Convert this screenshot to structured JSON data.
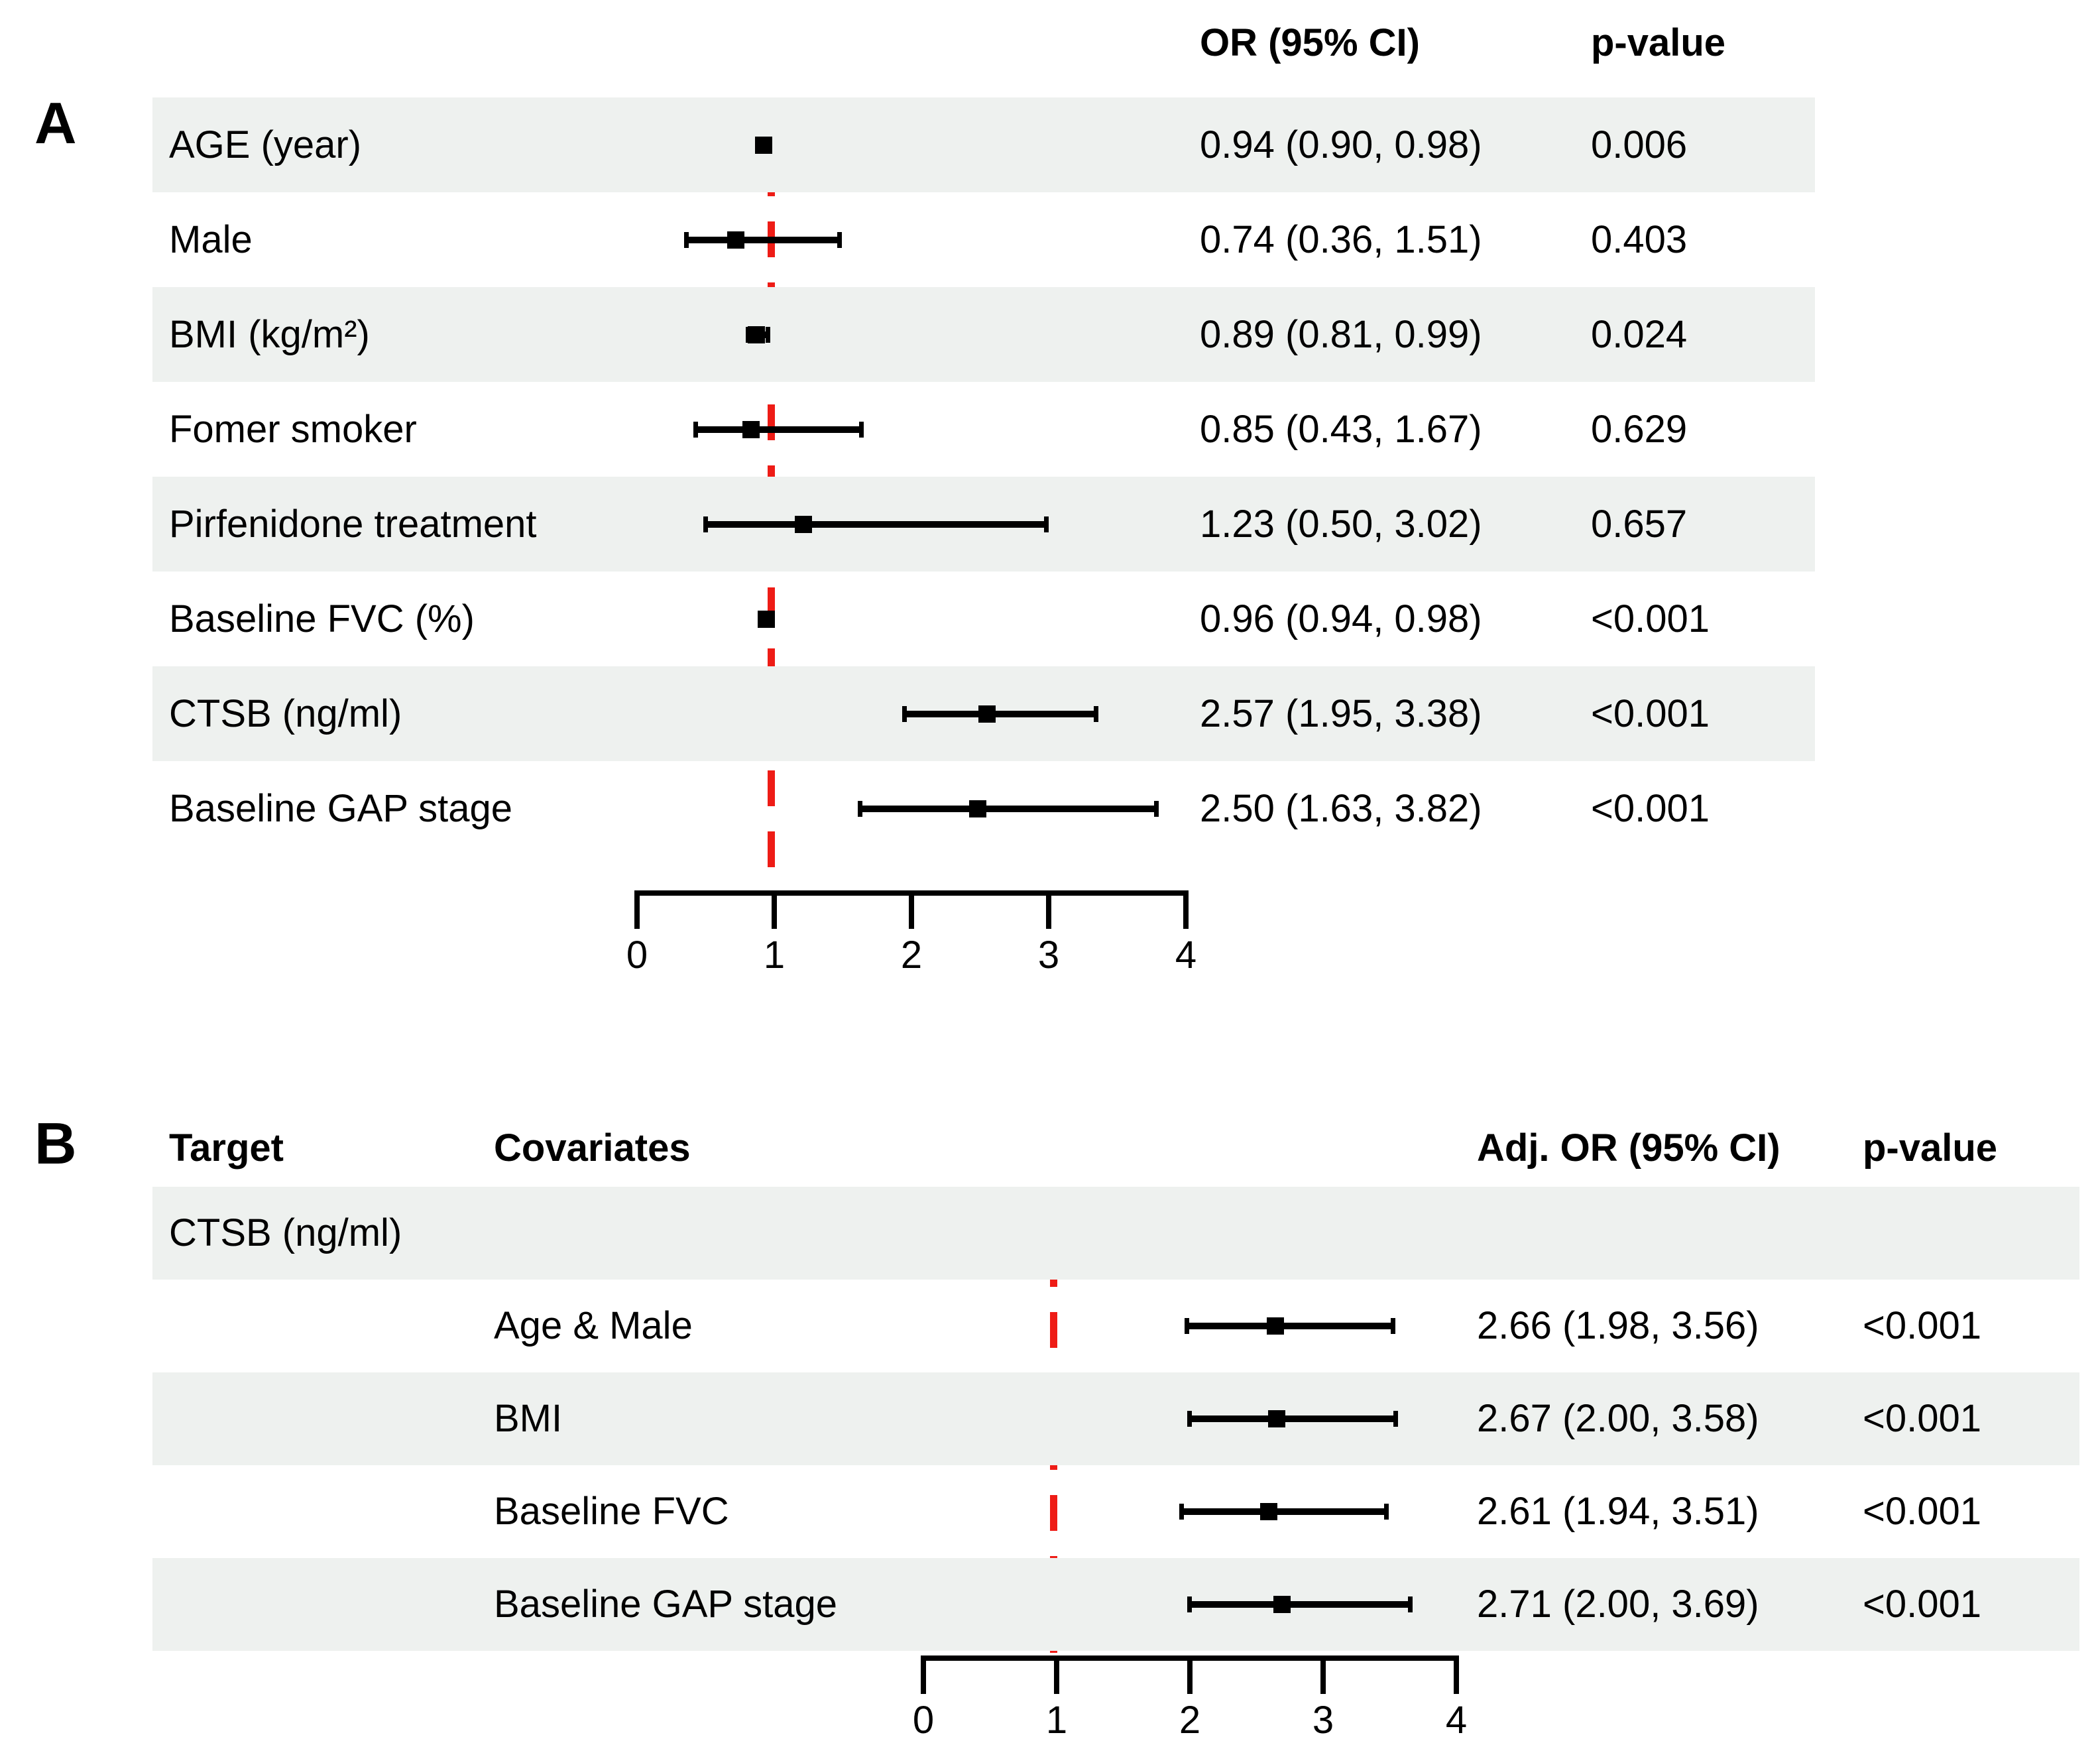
{
  "colors": {
    "band": "#eef1ef",
    "marker": "#000000",
    "reference_line": "#ee1c16"
  },
  "chart_data": [
    {
      "type": "forest",
      "panel": "A",
      "columns": {
        "or_header": "OR (95% CI)",
        "p_header": "p-value"
      },
      "rows": [
        {
          "label": "AGE (year)",
          "role": "variable",
          "or": 0.94,
          "ci": [
            0.9,
            0.98
          ],
          "or_text": "0.94 (0.90, 0.98)",
          "p": "0.006"
        },
        {
          "label": "Male",
          "role": "variable",
          "or": 0.74,
          "ci": [
            0.36,
            1.51
          ],
          "or_text": "0.74 (0.36, 1.51)",
          "p": "0.403"
        },
        {
          "label": "BMI (kg/m²)",
          "role": "variable",
          "or": 0.89,
          "ci": [
            0.81,
            0.99
          ],
          "or_text": "0.89 (0.81, 0.99)",
          "p": "0.024"
        },
        {
          "label": "Fomer smoker",
          "role": "variable",
          "or": 0.85,
          "ci": [
            0.43,
            1.67
          ],
          "or_text": "0.85 (0.43, 1.67)",
          "p": "0.629"
        },
        {
          "label": "Pirfenidone treatment",
          "role": "variable",
          "or": 1.23,
          "ci": [
            0.5,
            3.02
          ],
          "or_text": "1.23 (0.50, 3.02)",
          "p": "0.657"
        },
        {
          "label": "Baseline FVC (%)",
          "role": "variable",
          "or": 0.96,
          "ci": [
            0.94,
            0.98
          ],
          "or_text": "0.96 (0.94, 0.98)",
          "p": "<0.001"
        },
        {
          "label": "CTSB (ng/ml)",
          "role": "variable",
          "or": 2.57,
          "ci": [
            1.95,
            3.38
          ],
          "or_text": "2.57 (1.95, 3.38)",
          "p": "<0.001"
        },
        {
          "label": "Baseline GAP stage",
          "role": "variable",
          "or": 2.5,
          "ci": [
            1.63,
            3.82
          ],
          "or_text": "2.50 (1.63, 3.82)",
          "p": "<0.001"
        }
      ],
      "axis": {
        "tick_labels": [
          "0",
          "1",
          "2",
          "3",
          "4"
        ],
        "tick_values": [
          0,
          1,
          2,
          3,
          4
        ],
        "range": [
          0,
          4
        ],
        "reference_line": 1,
        "grid": false
      }
    },
    {
      "type": "forest",
      "panel": "B",
      "columns": {
        "target_header": "Target",
        "covariates_header": "Covariates",
        "or_header": "Adj. OR (95% CI)",
        "p_header": "p-value"
      },
      "rows": [
        {
          "label": "CTSB (ng/ml)",
          "role": "target"
        },
        {
          "label": "Age & Male",
          "role": "covariate",
          "or": 2.66,
          "ci": [
            1.98,
            3.56
          ],
          "or_text": "2.66 (1.98, 3.56)",
          "p": "<0.001"
        },
        {
          "label": "BMI",
          "role": "covariate",
          "or": 2.67,
          "ci": [
            2.0,
            3.58
          ],
          "or_text": "2.67 (2.00, 3.58)",
          "p": "<0.001"
        },
        {
          "label": "Baseline FVC",
          "role": "covariate",
          "or": 2.61,
          "ci": [
            1.94,
            3.51
          ],
          "or_text": "2.61 (1.94, 3.51)",
          "p": "<0.001"
        },
        {
          "label": "Baseline GAP stage",
          "role": "covariate",
          "or": 2.71,
          "ci": [
            2.0,
            3.69
          ],
          "or_text": "2.71 (2.00, 3.69)",
          "p": "<0.001"
        }
      ],
      "axis": {
        "tick_labels": [
          "0",
          "1",
          "2",
          "3",
          "4"
        ],
        "tick_values": [
          0,
          1,
          2,
          3,
          4
        ],
        "range": [
          0,
          4
        ],
        "reference_line": 1,
        "grid": false
      }
    }
  ]
}
